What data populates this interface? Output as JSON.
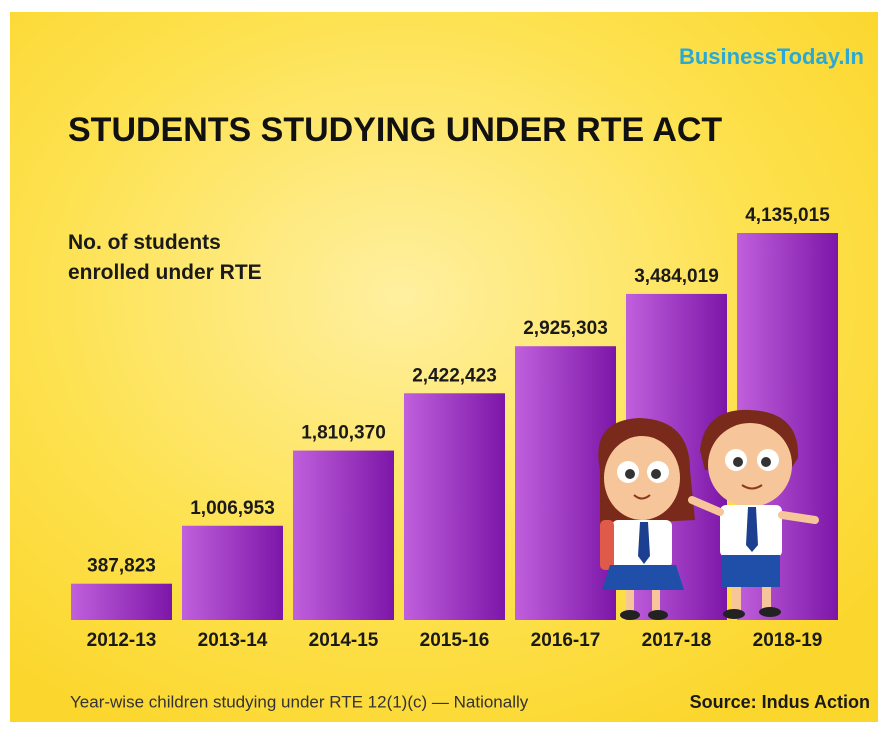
{
  "brand": "BusinessToday.In",
  "chart_data": {
    "type": "bar",
    "title": "STUDENTS STUDYING UNDER RTE ACT",
    "subtitle": "No. of students enrolled under RTE",
    "categories": [
      "2012-13",
      "2013-14",
      "2014-15",
      "2015-16",
      "2016-17",
      "2017-18",
      "2018-19"
    ],
    "values": [
      387823,
      1006953,
      1810370,
      2422423,
      2925303,
      3484019,
      4135015
    ],
    "value_labels": [
      "387,823",
      "1,006,953",
      "1,810,370",
      "2,422,423",
      "2,925,303",
      "3,484,019",
      "4,135,015"
    ],
    "color": "#8e24b8",
    "footnote": "Year-wise children studying under RTE 12(1)(c) — Nationally",
    "source": "Source: Indus Action"
  }
}
